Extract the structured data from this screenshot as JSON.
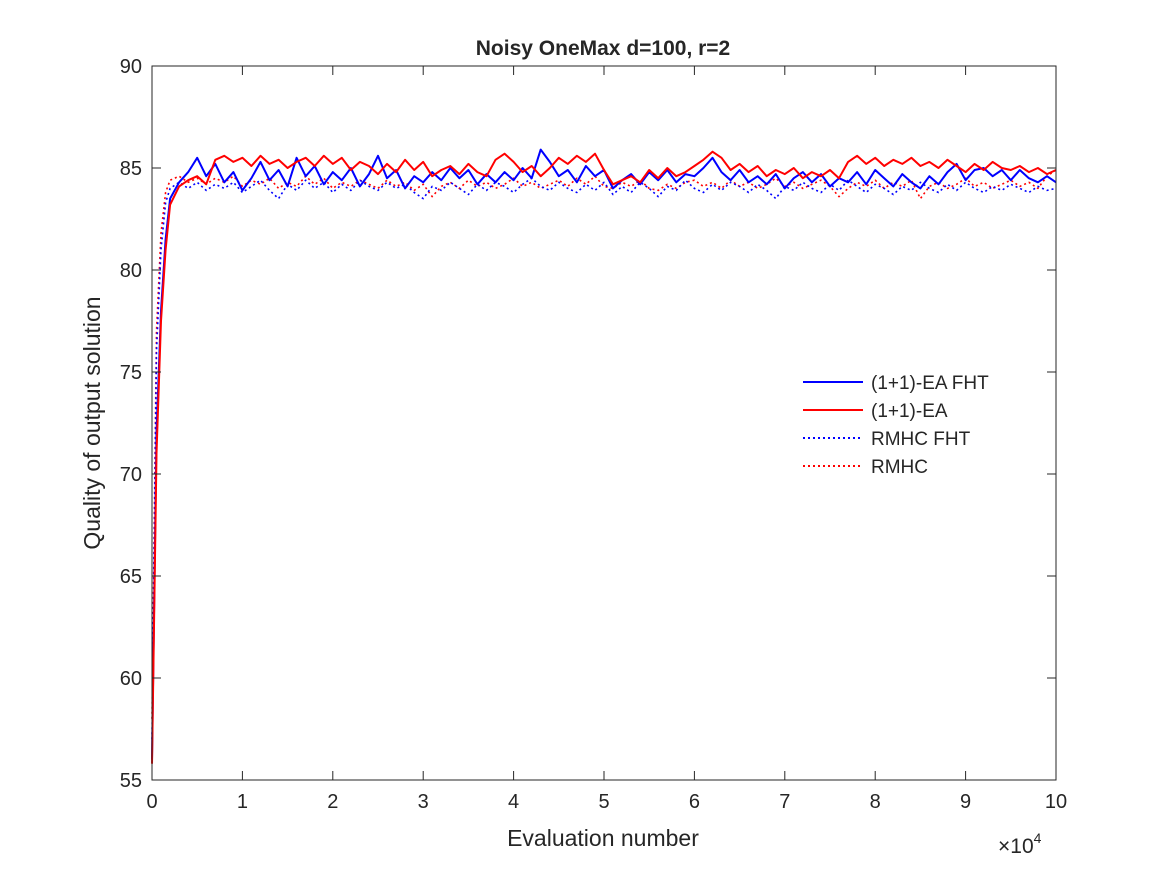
{
  "chart_data": {
    "type": "line",
    "title": "Noisy OneMax d=100, r=2",
    "xlabel": "Evaluation number",
    "ylabel": "Quality of output solution",
    "x_exponent_label": "×10",
    "x_exponent_power": "4",
    "xlim": [
      0,
      100000
    ],
    "ylim": [
      55,
      90
    ],
    "x_ticks": [
      0,
      10000,
      20000,
      30000,
      40000,
      50000,
      60000,
      70000,
      80000,
      90000,
      100000
    ],
    "x_tick_labels": [
      "0",
      "1",
      "2",
      "3",
      "4",
      "5",
      "6",
      "7",
      "8",
      "9",
      "10"
    ],
    "y_ticks": [
      55,
      60,
      65,
      70,
      75,
      80,
      85,
      90
    ],
    "y_tick_labels": [
      "55",
      "60",
      "65",
      "70",
      "75",
      "80",
      "85",
      "90"
    ],
    "grid": false,
    "legend_position": "right-middle",
    "series": [
      {
        "name": "(1+1)-EA FHT",
        "color": "#0000ff",
        "line_style": "solid",
        "x": [
          0,
          500,
          1000,
          1500,
          2000,
          3000,
          4000,
          5000,
          6000,
          7000,
          8000,
          9000,
          10000,
          11000,
          12000,
          13000,
          14000,
          15000,
          16000,
          17000,
          18000,
          19000,
          20000,
          21000,
          22000,
          23000,
          24000,
          25000,
          26000,
          27000,
          28000,
          29000,
          30000,
          31000,
          32000,
          33000,
          34000,
          35000,
          36000,
          37000,
          38000,
          39000,
          40000,
          41000,
          42000,
          43000,
          44000,
          45000,
          46000,
          47000,
          48000,
          49000,
          50000,
          51000,
          52000,
          53000,
          54000,
          55000,
          56000,
          57000,
          58000,
          59000,
          60000,
          61000,
          62000,
          63000,
          64000,
          65000,
          66000,
          67000,
          68000,
          69000,
          70000,
          71000,
          72000,
          73000,
          74000,
          75000,
          76000,
          77000,
          78000,
          79000,
          80000,
          81000,
          82000,
          83000,
          84000,
          85000,
          86000,
          87000,
          88000,
          89000,
          90000,
          91000,
          92000,
          93000,
          94000,
          95000,
          96000,
          97000,
          98000,
          99000,
          100000
        ],
        "y": [
          56,
          72,
          78,
          81.5,
          83.5,
          84.3,
          84.8,
          85.5,
          84.6,
          85.2,
          84.3,
          84.8,
          83.9,
          84.5,
          85.3,
          84.4,
          84.9,
          84.1,
          85.5,
          84.6,
          85.1,
          84.2,
          84.8,
          84.4,
          85.0,
          84.1,
          84.7,
          85.6,
          84.5,
          84.9,
          84.0,
          84.6,
          84.3,
          84.8,
          84.4,
          85.0,
          84.5,
          84.9,
          84.2,
          84.7,
          84.3,
          84.8,
          84.4,
          85.0,
          84.5,
          85.9,
          85.3,
          84.6,
          84.9,
          84.3,
          85.1,
          84.6,
          84.9,
          84.0,
          84.4,
          84.7,
          84.2,
          84.8,
          84.4,
          84.9,
          84.3,
          84.7,
          84.6,
          85.0,
          85.5,
          84.8,
          84.4,
          84.9,
          84.3,
          84.6,
          84.2,
          84.7,
          84.0,
          84.5,
          84.8,
          84.3,
          84.7,
          84.1,
          84.5,
          84.3,
          84.8,
          84.2,
          84.9,
          84.5,
          84.1,
          84.7,
          84.3,
          84.0,
          84.6,
          84.2,
          84.8,
          85.2,
          84.4,
          84.9,
          85.0,
          84.6,
          84.9,
          84.4,
          84.9,
          84.5,
          84.3,
          84.6,
          84.3
        ]
      },
      {
        "name": "(1+1)-EA",
        "color": "#ff0000",
        "line_style": "solid",
        "x": [
          0,
          500,
          1000,
          1500,
          2000,
          3000,
          4000,
          5000,
          6000,
          7000,
          8000,
          9000,
          10000,
          11000,
          12000,
          13000,
          14000,
          15000,
          16000,
          17000,
          18000,
          19000,
          20000,
          21000,
          22000,
          23000,
          24000,
          25000,
          26000,
          27000,
          28000,
          29000,
          30000,
          31000,
          32000,
          33000,
          34000,
          35000,
          36000,
          37000,
          38000,
          39000,
          40000,
          41000,
          42000,
          43000,
          44000,
          45000,
          46000,
          47000,
          48000,
          49000,
          50000,
          51000,
          52000,
          53000,
          54000,
          55000,
          56000,
          57000,
          58000,
          59000,
          60000,
          61000,
          62000,
          63000,
          64000,
          65000,
          66000,
          67000,
          68000,
          69000,
          70000,
          71000,
          72000,
          73000,
          74000,
          75000,
          76000,
          77000,
          78000,
          79000,
          80000,
          81000,
          82000,
          83000,
          84000,
          85000,
          86000,
          87000,
          88000,
          89000,
          90000,
          91000,
          92000,
          93000,
          94000,
          95000,
          96000,
          97000,
          98000,
          99000,
          100000
        ],
        "y": [
          55.8,
          71,
          77.5,
          81,
          83.2,
          84.1,
          84.4,
          84.6,
          84.2,
          85.4,
          85.6,
          85.3,
          85.5,
          85.1,
          85.6,
          85.2,
          85.4,
          85.0,
          85.3,
          85.5,
          85.1,
          85.6,
          85.2,
          85.5,
          84.9,
          85.3,
          85.1,
          84.7,
          85.2,
          84.8,
          85.4,
          84.9,
          85.3,
          84.6,
          84.9,
          85.1,
          84.7,
          85.2,
          84.8,
          84.6,
          85.4,
          85.7,
          85.3,
          84.8,
          85.1,
          84.6,
          85.0,
          85.5,
          85.2,
          85.6,
          85.3,
          85.7,
          84.9,
          84.2,
          84.4,
          84.6,
          84.3,
          84.9,
          84.5,
          85.0,
          84.6,
          84.8,
          85.1,
          85.4,
          85.8,
          85.5,
          84.9,
          85.2,
          84.8,
          85.1,
          84.6,
          84.9,
          84.7,
          85.0,
          84.5,
          84.8,
          84.6,
          84.9,
          84.5,
          85.3,
          85.6,
          85.2,
          85.5,
          85.1,
          85.4,
          85.2,
          85.5,
          85.1,
          85.3,
          85.0,
          85.4,
          85.1,
          84.8,
          85.2,
          84.9,
          85.3,
          85.0,
          84.9,
          85.1,
          84.8,
          85.0,
          84.7,
          84.9
        ]
      },
      {
        "name": "RMHC FHT",
        "color": "#0000ff",
        "line_style": "dotted",
        "x": [
          0,
          500,
          1000,
          1500,
          2000,
          3000,
          4000,
          5000,
          6000,
          7000,
          8000,
          9000,
          10000,
          11000,
          12000,
          13000,
          14000,
          15000,
          16000,
          17000,
          18000,
          19000,
          20000,
          21000,
          22000,
          23000,
          24000,
          25000,
          26000,
          27000,
          28000,
          29000,
          30000,
          31000,
          32000,
          33000,
          34000,
          35000,
          36000,
          37000,
          38000,
          39000,
          40000,
          41000,
          42000,
          43000,
          44000,
          45000,
          46000,
          47000,
          48000,
          49000,
          50000,
          51000,
          52000,
          53000,
          54000,
          55000,
          56000,
          57000,
          58000,
          59000,
          60000,
          61000,
          62000,
          63000,
          64000,
          65000,
          66000,
          67000,
          68000,
          69000,
          70000,
          71000,
          72000,
          73000,
          74000,
          75000,
          76000,
          77000,
          78000,
          79000,
          80000,
          81000,
          82000,
          83000,
          84000,
          85000,
          86000,
          87000,
          88000,
          89000,
          90000,
          91000,
          92000,
          93000,
          94000,
          95000,
          96000,
          97000,
          98000,
          99000,
          100000
        ],
        "y": [
          57,
          76,
          81,
          83.3,
          84.0,
          84.3,
          84.0,
          84.3,
          83.9,
          84.2,
          84.0,
          84.3,
          83.8,
          84.1,
          84.4,
          83.9,
          83.5,
          84.2,
          83.9,
          84.4,
          84.0,
          84.3,
          83.8,
          84.2,
          83.9,
          84.4,
          84.1,
          83.9,
          84.3,
          84.0,
          84.2,
          83.8,
          83.5,
          84.1,
          83.9,
          84.3,
          84.0,
          83.7,
          84.2,
          83.9,
          84.3,
          84.1,
          83.8,
          84.2,
          84.5,
          84.1,
          83.9,
          84.3,
          84.0,
          83.8,
          84.2,
          83.9,
          84.3,
          83.7,
          84.1,
          83.8,
          84.3,
          84.0,
          83.6,
          84.1,
          83.9,
          84.4,
          84.0,
          83.8,
          84.2,
          83.9,
          84.3,
          84.1,
          83.8,
          84.2,
          83.9,
          83.5,
          84.1,
          83.9,
          84.3,
          84.0,
          83.8,
          84.2,
          83.9,
          84.4,
          84.1,
          83.8,
          84.2,
          84.0,
          83.7,
          84.1,
          83.9,
          84.3,
          84.0,
          83.8,
          84.2,
          83.9,
          84.3,
          84.0,
          83.8,
          84.1,
          83.9,
          84.2,
          84.0,
          83.8,
          84.1,
          83.9,
          84.0
        ]
      },
      {
        "name": "RMHC",
        "color": "#ff0000",
        "line_style": "dotted",
        "x": [
          0,
          500,
          1000,
          1500,
          2000,
          3000,
          4000,
          5000,
          6000,
          7000,
          8000,
          9000,
          10000,
          11000,
          12000,
          13000,
          14000,
          15000,
          16000,
          17000,
          18000,
          19000,
          20000,
          21000,
          22000,
          23000,
          24000,
          25000,
          26000,
          27000,
          28000,
          29000,
          30000,
          31000,
          32000,
          33000,
          34000,
          35000,
          36000,
          37000,
          38000,
          39000,
          40000,
          41000,
          42000,
          43000,
          44000,
          45000,
          46000,
          47000,
          48000,
          49000,
          50000,
          51000,
          52000,
          53000,
          54000,
          55000,
          56000,
          57000,
          58000,
          59000,
          60000,
          61000,
          62000,
          63000,
          64000,
          65000,
          66000,
          67000,
          68000,
          69000,
          70000,
          71000,
          72000,
          73000,
          74000,
          75000,
          76000,
          77000,
          78000,
          79000,
          80000,
          81000,
          82000,
          83000,
          84000,
          85000,
          86000,
          87000,
          88000,
          89000,
          90000,
          91000,
          92000,
          93000,
          94000,
          95000,
          96000,
          97000,
          98000,
          99000,
          100000
        ],
        "y": [
          58,
          77,
          81.8,
          83.8,
          84.4,
          84.6,
          84.3,
          84.5,
          84.2,
          84.5,
          84.3,
          84.6,
          84.1,
          84.4,
          84.2,
          84.5,
          84.0,
          84.3,
          84.1,
          84.6,
          84.2,
          84.5,
          84.0,
          84.3,
          84.1,
          84.4,
          84.2,
          84.0,
          84.4,
          84.1,
          84.3,
          83.9,
          84.2,
          83.6,
          84.1,
          84.3,
          84.0,
          84.4,
          84.1,
          84.3,
          84.0,
          84.2,
          84.5,
          84.1,
          84.3,
          84.0,
          84.2,
          84.4,
          84.1,
          84.5,
          84.2,
          84.6,
          84.1,
          84.0,
          84.3,
          84.1,
          84.4,
          84.0,
          83.9,
          84.2,
          84.0,
          84.3,
          84.4,
          84.1,
          84.3,
          84.0,
          84.4,
          84.1,
          84.3,
          84.0,
          84.2,
          84.5,
          84.1,
          84.3,
          84.0,
          84.2,
          84.4,
          84.1,
          83.6,
          84.0,
          84.3,
          84.1,
          84.4,
          84.0,
          84.3,
          84.1,
          84.4,
          83.5,
          84.1,
          84.3,
          84.0,
          84.2,
          84.5,
          84.1,
          84.3,
          84.0,
          84.2,
          84.4,
          84.1,
          84.3,
          84.0,
          84.6,
          84.9
        ]
      }
    ]
  }
}
